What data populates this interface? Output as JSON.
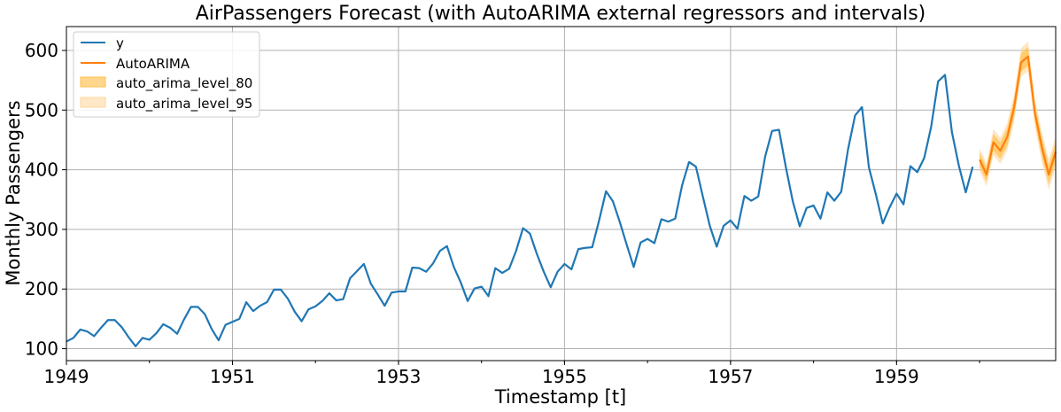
{
  "chart_data": {
    "type": "line",
    "title": "AirPassengers Forecast (with AutoARIMA external regressors and intervals)",
    "xlabel": "Timestamp [t]",
    "ylabel": "Monthly Passengers",
    "xlim": [
      "1949-01",
      "1960-12"
    ],
    "ylim": [
      80,
      640
    ],
    "x_ticks": [
      {
        "value": "1949-01",
        "label": "1949"
      },
      {
        "value": "1951-01",
        "label": "1951"
      },
      {
        "value": "1953-01",
        "label": "1953"
      },
      {
        "value": "1955-01",
        "label": "1955"
      },
      {
        "value": "1957-01",
        "label": "1957"
      },
      {
        "value": "1959-01",
        "label": "1959"
      }
    ],
    "y_ticks": [
      100,
      200,
      300,
      400,
      500,
      600
    ],
    "grid": true,
    "legend_position": "top-left",
    "colors": {
      "y": "#1f77b4",
      "forecast": "#ff7f0e",
      "band80": "#ffc04d",
      "band95": "#ffd699"
    },
    "series": [
      {
        "name": "y",
        "start": "1949-01",
        "freq": "monthly",
        "values": [
          112,
          118,
          132,
          129,
          121,
          135,
          148,
          148,
          136,
          119,
          104,
          118,
          115,
          126,
          141,
          135,
          125,
          149,
          170,
          170,
          158,
          133,
          114,
          140,
          145,
          150,
          178,
          163,
          172,
          178,
          199,
          199,
          184,
          162,
          146,
          166,
          171,
          180,
          193,
          181,
          183,
          218,
          230,
          242,
          209,
          191,
          172,
          194,
          196,
          196,
          236,
          235,
          229,
          243,
          264,
          272,
          237,
          211,
          180,
          201,
          204,
          188,
          235,
          227,
          234,
          264,
          302,
          293,
          259,
          229,
          203,
          229,
          242,
          233,
          267,
          269,
          270,
          315,
          364,
          347,
          312,
          274,
          237,
          278,
          284,
          277,
          317,
          313,
          318,
          374,
          413,
          405,
          355,
          306,
          271,
          306,
          315,
          301,
          356,
          348,
          355,
          422,
          465,
          467,
          404,
          347,
          305,
          336,
          340,
          318,
          362,
          348,
          363,
          435,
          491,
          505,
          404,
          359,
          310,
          337,
          360,
          342,
          406,
          396,
          420,
          472,
          548,
          559,
          463,
          407,
          362,
          405
        ]
      },
      {
        "name": "AutoARIMA",
        "start": "1960-01",
        "freq": "monthly",
        "values": [
          417,
          392,
          446,
          432,
          455,
          505,
          580,
          590,
          495,
          438,
          392,
          430
        ]
      },
      {
        "name": "auto_arima_level_80",
        "start": "1960-01",
        "freq": "monthly",
        "lo": [
          405,
          380,
          432,
          418,
          440,
          490,
          565,
          574,
          480,
          422,
          376,
          414
        ],
        "hi": [
          429,
          404,
          460,
          446,
          470,
          520,
          595,
          606,
          510,
          454,
          408,
          446
        ]
      },
      {
        "name": "auto_arima_level_95",
        "start": "1960-01",
        "freq": "monthly",
        "lo": [
          398,
          372,
          424,
          410,
          432,
          481,
          556,
          565,
          471,
          413,
          366,
          405
        ],
        "hi": [
          436,
          412,
          468,
          454,
          478,
          529,
          604,
          615,
          519,
          463,
          418,
          455
        ]
      }
    ]
  }
}
